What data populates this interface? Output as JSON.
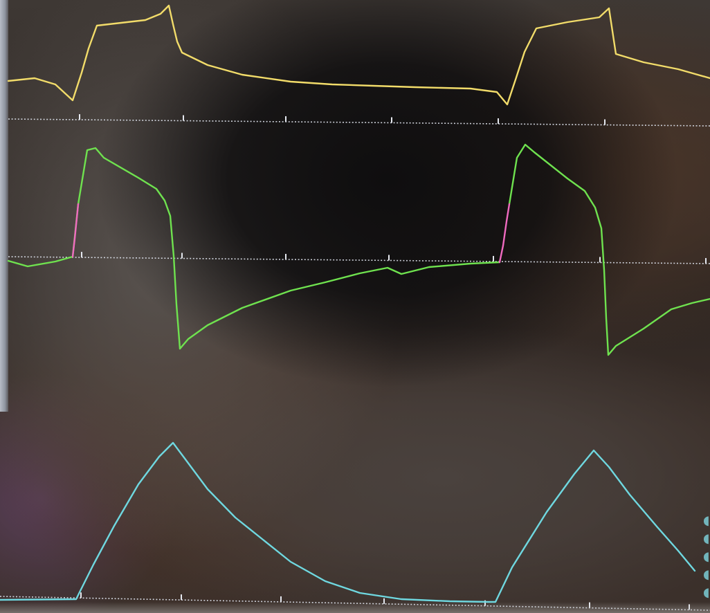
{
  "scene": "photo-of-ventilator-monitor-waveforms",
  "colors": {
    "pressure_trace": "#f2dc6a",
    "flow_trace": "#6fe24f",
    "trigger_segment": "#f06ac0",
    "volume_trace": "#6fd8e0",
    "baseline": "#d8dce6"
  },
  "waveforms": [
    {
      "name": "pressure-waveform",
      "color_key": "pressure_trace",
      "cycles_visible": 2
    },
    {
      "name": "flow-waveform",
      "color_key": "flow_trace",
      "cycles_visible": 2,
      "trigger_marker_color_key": "trigger_segment"
    },
    {
      "name": "volume-waveform",
      "color_key": "volume_trace",
      "cycles_visible": 2
    }
  ]
}
